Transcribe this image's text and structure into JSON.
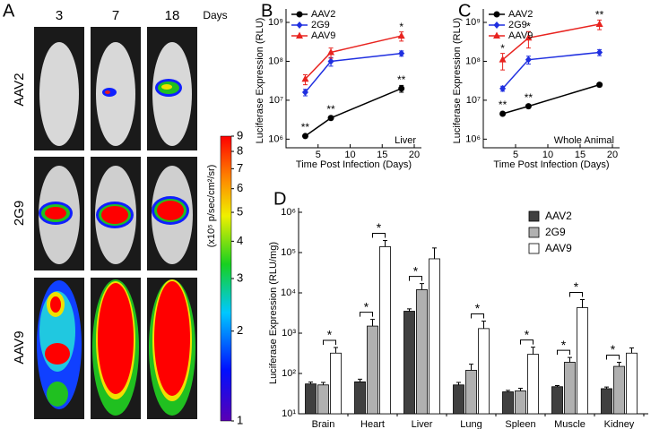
{
  "panel_a": {
    "panel": "A",
    "days": [
      "3",
      "7",
      "18"
    ],
    "days_unit": "Days",
    "rows": [
      "AAV2",
      "2G9",
      "AAV9"
    ],
    "colorbar": {
      "label": "(x10⁵ p/sec/cm²/sr)",
      "lim": [
        1,
        9
      ],
      "log": true,
      "ticks": [
        1,
        2,
        3,
        4,
        5,
        6,
        7,
        8,
        9
      ]
    }
  },
  "chart_data": [
    {
      "type": "line",
      "panel": "B",
      "annotation": "Liver",
      "xlabel": "Time Post Infection (Days)",
      "ylabel": "Luciferase Expression (RLU)",
      "log_y": true,
      "legend": "upper left",
      "xlim": [
        0,
        20
      ],
      "xticks": [
        5,
        10,
        15,
        20
      ],
      "ylim": [
        600000,
        1700000000
      ],
      "yticks": [
        {
          "value": 1000000,
          "label": "10⁶"
        },
        {
          "value": 10000000,
          "label": "10⁷"
        },
        {
          "value": 100000000,
          "label": "10⁸"
        },
        {
          "value": 1000000000,
          "label": "10⁹"
        }
      ],
      "x": [
        3,
        7,
        18
      ],
      "series": [
        {
          "name": "AAV2",
          "color": "#000000",
          "marker": "circle",
          "values": [
            1200000,
            3500000,
            20000000
          ],
          "errors": [
            100000,
            300000,
            4000000
          ],
          "significance": [
            "**",
            "**",
            "**"
          ]
        },
        {
          "name": "2G9",
          "color": "#1f2fe0",
          "marker": "diamond",
          "values": [
            16000000,
            100000000,
            160000000
          ],
          "errors": [
            3000000,
            25000000,
            25000000
          ]
        },
        {
          "name": "AAV9",
          "color": "#e8231f",
          "marker": "triangle",
          "values": [
            35000000,
            170000000,
            450000000
          ],
          "errors": [
            10000000,
            50000000,
            120000000
          ],
          "significance": [
            null,
            null,
            "*"
          ]
        }
      ]
    },
    {
      "type": "line",
      "panel": "C",
      "annotation": "Whole Animal",
      "xlabel": "Time Post Infection (Days)",
      "ylabel": "Luciferase Expression (RLU)",
      "log_y": true,
      "legend": "upper left",
      "xlim": [
        0,
        20
      ],
      "xticks": [
        5,
        10,
        15,
        20
      ],
      "ylim": [
        600000,
        1700000000
      ],
      "yticks": [
        {
          "value": 1000000,
          "label": "10⁶"
        },
        {
          "value": 10000000,
          "label": "10⁷"
        },
        {
          "value": 100000000,
          "label": "10⁸"
        },
        {
          "value": 1000000000,
          "label": "10⁹"
        }
      ],
      "x": [
        3,
        7,
        18
      ],
      "series": [
        {
          "name": "AAV2",
          "color": "#000000",
          "marker": "circle",
          "values": [
            4500000,
            7000000,
            25000000
          ],
          "errors": [
            400000,
            600000,
            3000000
          ],
          "significance": [
            "**",
            "**",
            null
          ]
        },
        {
          "name": "2G9",
          "color": "#1f2fe0",
          "marker": "diamond",
          "values": [
            20000000,
            110000000,
            170000000
          ],
          "errors": [
            3000000,
            25000000,
            30000000
          ]
        },
        {
          "name": "AAV9",
          "color": "#e8231f",
          "marker": "triangle",
          "values": [
            110000000,
            400000000,
            900000000
          ],
          "errors": [
            50000000,
            180000000,
            250000000
          ],
          "significance": [
            "*",
            "*",
            "**"
          ]
        }
      ]
    },
    {
      "type": "bar",
      "panel": "D",
      "ylabel": "Luciferase Expression (RLU/mg)",
      "log_y": true,
      "legend": "upper right",
      "ylim": [
        10,
        1000000
      ],
      "yticks": [
        {
          "value": 10,
          "label": "10¹"
        },
        {
          "value": 100,
          "label": "10²"
        },
        {
          "value": 1000,
          "label": "10³"
        },
        {
          "value": 10000,
          "label": "10⁴"
        },
        {
          "value": 100000,
          "label": "10⁵"
        },
        {
          "value": 1000000,
          "label": "10⁶"
        }
      ],
      "categories": [
        "Brain",
        "Heart",
        "Liver",
        "Lung",
        "Spleen",
        "Muscle",
        "Kidney"
      ],
      "series": [
        {
          "name": "AAV2",
          "color": "#404040",
          "values": [
            55,
            62,
            3500,
            52,
            35,
            47,
            42
          ],
          "errors": [
            6,
            10,
            500,
            8,
            3,
            3,
            4
          ]
        },
        {
          "name": "2G9",
          "color": "#b0b0b0",
          "values": [
            52,
            1500,
            12000,
            120,
            37,
            190,
            150
          ],
          "errors": [
            8,
            700,
            5000,
            50,
            6,
            60,
            40
          ],
          "significance": [
            null,
            "*",
            "*",
            null,
            null,
            "*",
            "*"
          ]
        },
        {
          "name": "AAV9",
          "color": "#ffffff",
          "values": [
            320,
            140000,
            70000,
            1300,
            300,
            4300,
            320
          ],
          "errors": [
            120,
            60000,
            60000,
            700,
            150,
            2500,
            110
          ],
          "significance": [
            "*",
            "*",
            null,
            "*",
            "*",
            "*",
            null
          ]
        }
      ]
    }
  ]
}
